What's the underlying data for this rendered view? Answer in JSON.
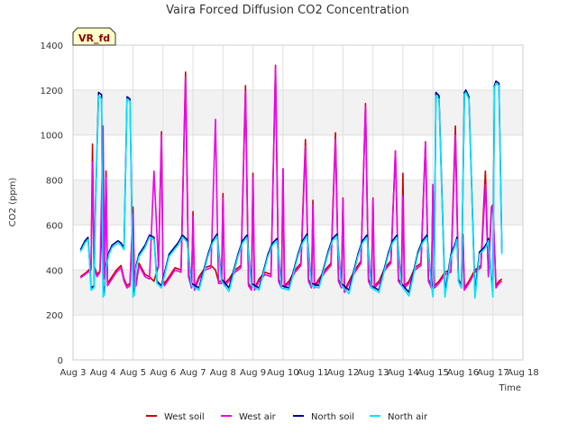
{
  "chart_data": {
    "type": "line",
    "title": "Vaira Forced Diffusion CO2 Concentration",
    "site_label": "VR_fd",
    "xlabel": "Time",
    "ylabel": "CO2 (ppm)",
    "ylim": [
      0,
      1400
    ],
    "xlim": [
      3,
      18
    ],
    "yticks": [
      0,
      200,
      400,
      600,
      800,
      1000,
      1200,
      1400
    ],
    "xtick_values": [
      3,
      4,
      5,
      6,
      7,
      8,
      9,
      10,
      11,
      12,
      13,
      14,
      15,
      16,
      17,
      18
    ],
    "xtick_labels": [
      "Aug 3",
      "Aug 4",
      "Aug 5",
      "Aug 6",
      "Aug 7",
      "Aug 8",
      "Aug 9",
      "Aug 10",
      "Aug 11",
      "Aug 12",
      "Aug 13",
      "Aug 14",
      "Aug 15",
      "Aug 16",
      "Aug 17",
      "Aug 18"
    ],
    "grid": true,
    "shaded_bands": [
      [
        200,
        400
      ],
      [
        600,
        800
      ],
      [
        1000,
        1200
      ]
    ],
    "legend_position": "bottom",
    "series": [
      {
        "name": "West soil",
        "color": "#cc0000",
        "x": [
          3.25,
          3.45,
          3.6,
          3.65,
          3.7,
          3.8,
          3.9,
          4.0,
          4.05,
          4.1,
          4.15,
          4.3,
          4.45,
          4.6,
          4.7,
          4.8,
          4.9,
          5.0,
          5.05,
          5.1,
          5.2,
          5.4,
          5.55,
          5.7,
          5.85,
          5.95,
          6.0,
          6.05,
          6.2,
          6.4,
          6.6,
          6.75,
          6.85,
          6.95,
          7.0,
          7.05,
          7.2,
          7.4,
          7.6,
          7.75,
          7.85,
          7.95,
          8.0,
          8.05,
          8.2,
          8.4,
          8.6,
          8.75,
          8.85,
          8.95,
          9.0,
          9.05,
          9.2,
          9.4,
          9.6,
          9.75,
          9.85,
          9.95,
          10.0,
          10.05,
          10.2,
          10.4,
          10.6,
          10.75,
          10.85,
          10.95,
          11.0,
          11.05,
          11.2,
          11.4,
          11.6,
          11.75,
          11.85,
          11.95,
          12.0,
          12.05,
          12.2,
          12.4,
          12.6,
          12.75,
          12.85,
          12.95,
          13.0,
          13.05,
          13.2,
          13.4,
          13.6,
          13.75,
          13.85,
          13.95,
          14.0,
          14.05,
          14.2,
          14.4,
          14.6,
          14.75,
          14.85,
          14.95,
          15.0,
          15.05,
          15.2,
          15.4,
          15.6,
          15.75,
          15.85,
          15.95,
          16.0,
          16.05,
          16.2,
          16.4,
          16.6,
          16.75,
          16.85,
          16.95,
          17.0,
          17.1,
          17.2,
          17.3
        ],
        "y": [
          370,
          390,
          410,
          960,
          420,
          380,
          395,
          680,
          370,
          840,
          340,
          370,
          400,
          420,
          360,
          330,
          340,
          680,
          330,
          340,
          430,
          380,
          370,
          350,
          420,
          1015,
          360,
          340,
          370,
          410,
          400,
          1280,
          380,
          330,
          660,
          320,
          370,
          410,
          420,
          400,
          350,
          350,
          740,
          340,
          360,
          400,
          420,
          1220,
          340,
          320,
          830,
          320,
          360,
          390,
          380,
          1310,
          360,
          330,
          850,
          330,
          350,
          400,
          430,
          980,
          360,
          330,
          710,
          330,
          360,
          400,
          430,
          1010,
          360,
          330,
          720,
          310,
          350,
          400,
          440,
          1140,
          360,
          330,
          720,
          330,
          350,
          410,
          440,
          930,
          360,
          340,
          830,
          330,
          350,
          410,
          430,
          970,
          360,
          330,
          780,
          330,
          350,
          390,
          400,
          1040,
          360,
          330,
          560,
          320,
          350,
          400,
          420,
          840,
          380,
          680,
          690,
          330,
          350,
          360
        ]
      },
      {
        "name": "West air",
        "color": "#ee00ee",
        "x": [
          3.25,
          3.45,
          3.6,
          3.65,
          3.7,
          3.8,
          3.9,
          4.0,
          4.05,
          4.1,
          4.15,
          4.3,
          4.45,
          4.6,
          4.7,
          4.8,
          4.9,
          5.0,
          5.05,
          5.1,
          5.2,
          5.4,
          5.55,
          5.7,
          5.85,
          5.95,
          6.0,
          6.05,
          6.2,
          6.4,
          6.6,
          6.75,
          6.85,
          6.95,
          7.0,
          7.05,
          7.2,
          7.4,
          7.6,
          7.75,
          7.85,
          7.95,
          8.0,
          8.05,
          8.2,
          8.4,
          8.6,
          8.75,
          8.85,
          8.95,
          9.0,
          9.05,
          9.2,
          9.4,
          9.6,
          9.75,
          9.85,
          9.95,
          10.0,
          10.05,
          10.2,
          10.4,
          10.6,
          10.75,
          10.85,
          10.95,
          11.0,
          11.05,
          11.2,
          11.4,
          11.6,
          11.75,
          11.85,
          11.95,
          12.0,
          12.05,
          12.2,
          12.4,
          12.6,
          12.75,
          12.85,
          12.95,
          13.0,
          13.05,
          13.2,
          13.4,
          13.6,
          13.75,
          13.85,
          13.95,
          14.0,
          14.05,
          14.2,
          14.4,
          14.6,
          14.75,
          14.85,
          14.95,
          15.0,
          15.05,
          15.2,
          15.4,
          15.6,
          15.75,
          15.85,
          15.95,
          16.0,
          16.05,
          16.2,
          16.4,
          16.6,
          16.75,
          16.85,
          16.95,
          17.0,
          17.1,
          17.2,
          17.3
        ],
        "y": [
          365,
          385,
          400,
          880,
          410,
          370,
          390,
          1040,
          360,
          810,
          330,
          360,
          390,
          410,
          350,
          320,
          330,
          650,
          320,
          330,
          420,
          370,
          360,
          840,
          410,
          1000,
          350,
          330,
          360,
          400,
          390,
          1255,
          370,
          320,
          640,
          310,
          360,
          400,
          410,
          1070,
          340,
          340,
          720,
          330,
          350,
          390,
          410,
          1195,
          330,
          310,
          810,
          310,
          350,
          380,
          370,
          1305,
          350,
          320,
          850,
          320,
          340,
          390,
          420,
          950,
          350,
          320,
          690,
          320,
          350,
          390,
          420,
          980,
          350,
          320,
          715,
          300,
          340,
          390,
          430,
          1130,
          350,
          320,
          715,
          320,
          340,
          400,
          430,
          930,
          350,
          330,
          730,
          320,
          340,
          400,
          420,
          965,
          350,
          320,
          780,
          320,
          340,
          380,
          390,
          1000,
          350,
          320,
          540,
          310,
          340,
          390,
          410,
          780,
          370,
          670,
          690,
          320,
          340,
          350
        ]
      },
      {
        "name": "North soil",
        "color": "#00008b",
        "x": [
          3.25,
          3.4,
          3.5,
          3.55,
          3.6,
          3.7,
          3.75,
          3.85,
          3.95,
          4.0,
          4.05,
          4.1,
          4.2,
          4.3,
          4.5,
          4.6,
          4.7,
          4.8,
          4.9,
          5.0,
          5.05,
          5.1,
          5.2,
          5.4,
          5.55,
          5.7,
          5.8,
          5.95,
          6.2,
          6.5,
          6.65,
          6.8,
          6.95,
          7.2,
          7.5,
          7.65,
          7.8,
          7.95,
          8.2,
          8.5,
          8.65,
          8.8,
          8.95,
          9.2,
          9.5,
          9.65,
          9.8,
          9.95,
          10.2,
          10.5,
          10.65,
          10.8,
          10.95,
          11.2,
          11.5,
          11.65,
          11.8,
          11.95,
          12.2,
          12.5,
          12.65,
          12.8,
          12.95,
          13.2,
          13.5,
          13.65,
          13.8,
          13.95,
          14.2,
          14.5,
          14.65,
          14.8,
          14.95,
          15.0,
          15.05,
          15.1,
          15.2,
          15.4,
          15.6,
          15.75,
          15.8,
          15.85,
          15.95,
          16.05,
          16.1,
          16.2,
          16.4,
          16.55,
          16.7,
          16.8,
          16.85,
          16.95,
          17.0,
          17.05,
          17.1,
          17.2,
          17.3
        ],
        "y": [
          490,
          530,
          545,
          450,
          320,
          330,
          700,
          1190,
          1180,
          330,
          300,
          420,
          480,
          510,
          530,
          520,
          500,
          1170,
          1160,
          320,
          300,
          420,
          470,
          510,
          555,
          545,
          350,
          330,
          470,
          520,
          555,
          535,
          340,
          320,
          470,
          530,
          560,
          360,
          320,
          470,
          530,
          555,
          340,
          320,
          470,
          520,
          540,
          330,
          320,
          470,
          530,
          560,
          340,
          330,
          480,
          540,
          560,
          340,
          310,
          470,
          530,
          555,
          330,
          310,
          470,
          530,
          555,
          340,
          300,
          480,
          530,
          555,
          340,
          310,
          480,
          1190,
          1175,
          300,
          470,
          520,
          545,
          360,
          330,
          1190,
          1200,
          1170,
          300,
          480,
          500,
          520,
          540,
          360,
          340,
          1220,
          1240,
          1230,
          480
        ]
      },
      {
        "name": "North air",
        "color": "#00e5ff",
        "x": [
          3.25,
          3.4,
          3.5,
          3.55,
          3.6,
          3.7,
          3.75,
          3.85,
          3.95,
          4.0,
          4.05,
          4.1,
          4.2,
          4.3,
          4.5,
          4.6,
          4.7,
          4.8,
          4.9,
          5.0,
          5.05,
          5.1,
          5.2,
          5.4,
          5.55,
          5.7,
          5.8,
          5.95,
          6.2,
          6.5,
          6.65,
          6.8,
          6.95,
          7.2,
          7.5,
          7.65,
          7.8,
          7.95,
          8.2,
          8.5,
          8.65,
          8.8,
          8.95,
          9.2,
          9.5,
          9.65,
          9.8,
          9.95,
          10.2,
          10.5,
          10.65,
          10.8,
          10.95,
          11.2,
          11.5,
          11.65,
          11.8,
          11.95,
          12.2,
          12.5,
          12.65,
          12.8,
          12.95,
          13.2,
          13.5,
          13.65,
          13.8,
          13.95,
          14.2,
          14.5,
          14.65,
          14.8,
          14.95,
          15.0,
          15.05,
          15.1,
          15.2,
          15.4,
          15.6,
          15.75,
          15.8,
          15.85,
          15.95,
          16.05,
          16.1,
          16.2,
          16.4,
          16.55,
          16.7,
          16.8,
          16.85,
          16.95,
          17.0,
          17.05,
          17.1,
          17.2,
          17.3
        ],
        "y": [
          480,
          520,
          535,
          440,
          310,
          320,
          680,
          1175,
          1160,
          280,
          290,
          410,
          470,
          500,
          520,
          510,
          490,
          1160,
          1150,
          280,
          290,
          410,
          460,
          500,
          545,
          535,
          340,
          320,
          460,
          510,
          545,
          525,
          330,
          310,
          460,
          520,
          550,
          350,
          305,
          460,
          520,
          545,
          330,
          310,
          460,
          510,
          530,
          320,
          310,
          460,
          520,
          550,
          330,
          320,
          470,
          530,
          550,
          330,
          295,
          460,
          520,
          545,
          320,
          300,
          460,
          520,
          545,
          330,
          285,
          470,
          520,
          545,
          330,
          280,
          470,
          1175,
          1160,
          280,
          460,
          510,
          535,
          350,
          320,
          1180,
          1190,
          1160,
          275,
          470,
          490,
          510,
          530,
          350,
          280,
          1210,
          1230,
          1220,
          470
        ]
      }
    ]
  }
}
